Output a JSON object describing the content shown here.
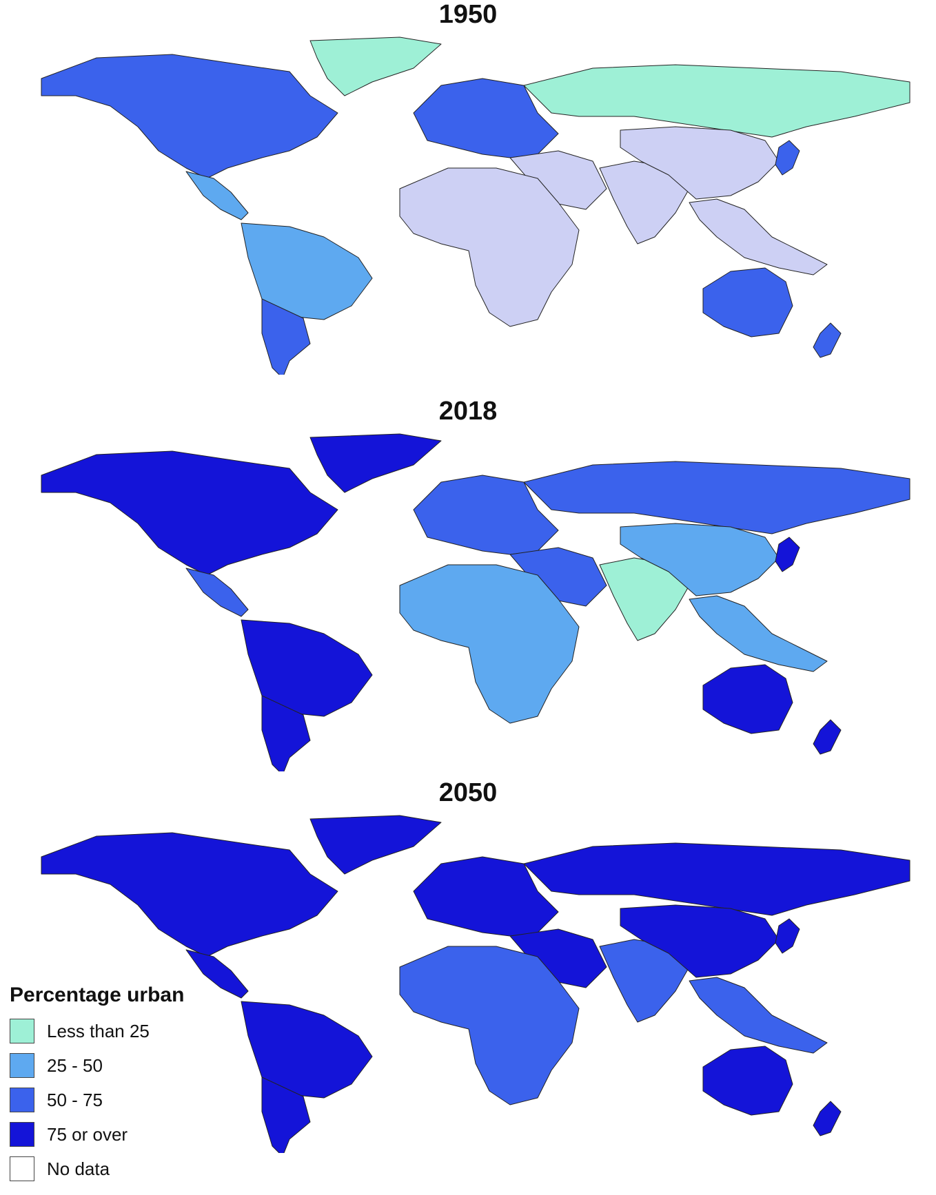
{
  "panels": [
    {
      "year": "1950",
      "levels": {
        "na": 3,
        "ca": 2,
        "sa": 2,
        "sa_south": 3,
        "gl": 1,
        "eu": 3,
        "ru": 1,
        "me": 0,
        "af": 0,
        "sas": 0,
        "cn": 0,
        "sea": 0,
        "jp": 3,
        "au": 3,
        "nz": 3
      }
    },
    {
      "year": "2018",
      "levels": {
        "na": 4,
        "ca": 3,
        "sa": 4,
        "sa_south": 4,
        "gl": 4,
        "eu": 3,
        "ru": 3,
        "me": 3,
        "af": 2,
        "sas": 1,
        "cn": 2,
        "sea": 2,
        "jp": 4,
        "au": 4,
        "nz": 4
      }
    },
    {
      "year": "2050",
      "levels": {
        "na": 4,
        "ca": 4,
        "sa": 4,
        "sa_south": 4,
        "gl": 4,
        "eu": 4,
        "ru": 4,
        "me": 4,
        "af": 3,
        "sas": 3,
        "cn": 4,
        "sea": 3,
        "jp": 4,
        "au": 4,
        "nz": 4
      }
    }
  ],
  "colors": {
    "1950_low": "#cdd0f4",
    "level_1": "#9ef0d6",
    "level_2": "#5ea9f0",
    "level_3": "#3b62ec",
    "level_4": "#1414d8",
    "no_data": "#ffffff",
    "level_0": "#cdd0f4",
    "ocean": "#ffffff"
  },
  "legend": {
    "title": "Percentage urban",
    "items": [
      {
        "label": "Less than 25",
        "color": "#9ef0d6"
      },
      {
        "label": "25 - 50",
        "color": "#5ea9f0"
      },
      {
        "label": "50 - 75",
        "color": "#3b62ec"
      },
      {
        "label": "75 or over",
        "color": "#1414d8"
      },
      {
        "label": "No data",
        "color": "#ffffff"
      }
    ]
  }
}
